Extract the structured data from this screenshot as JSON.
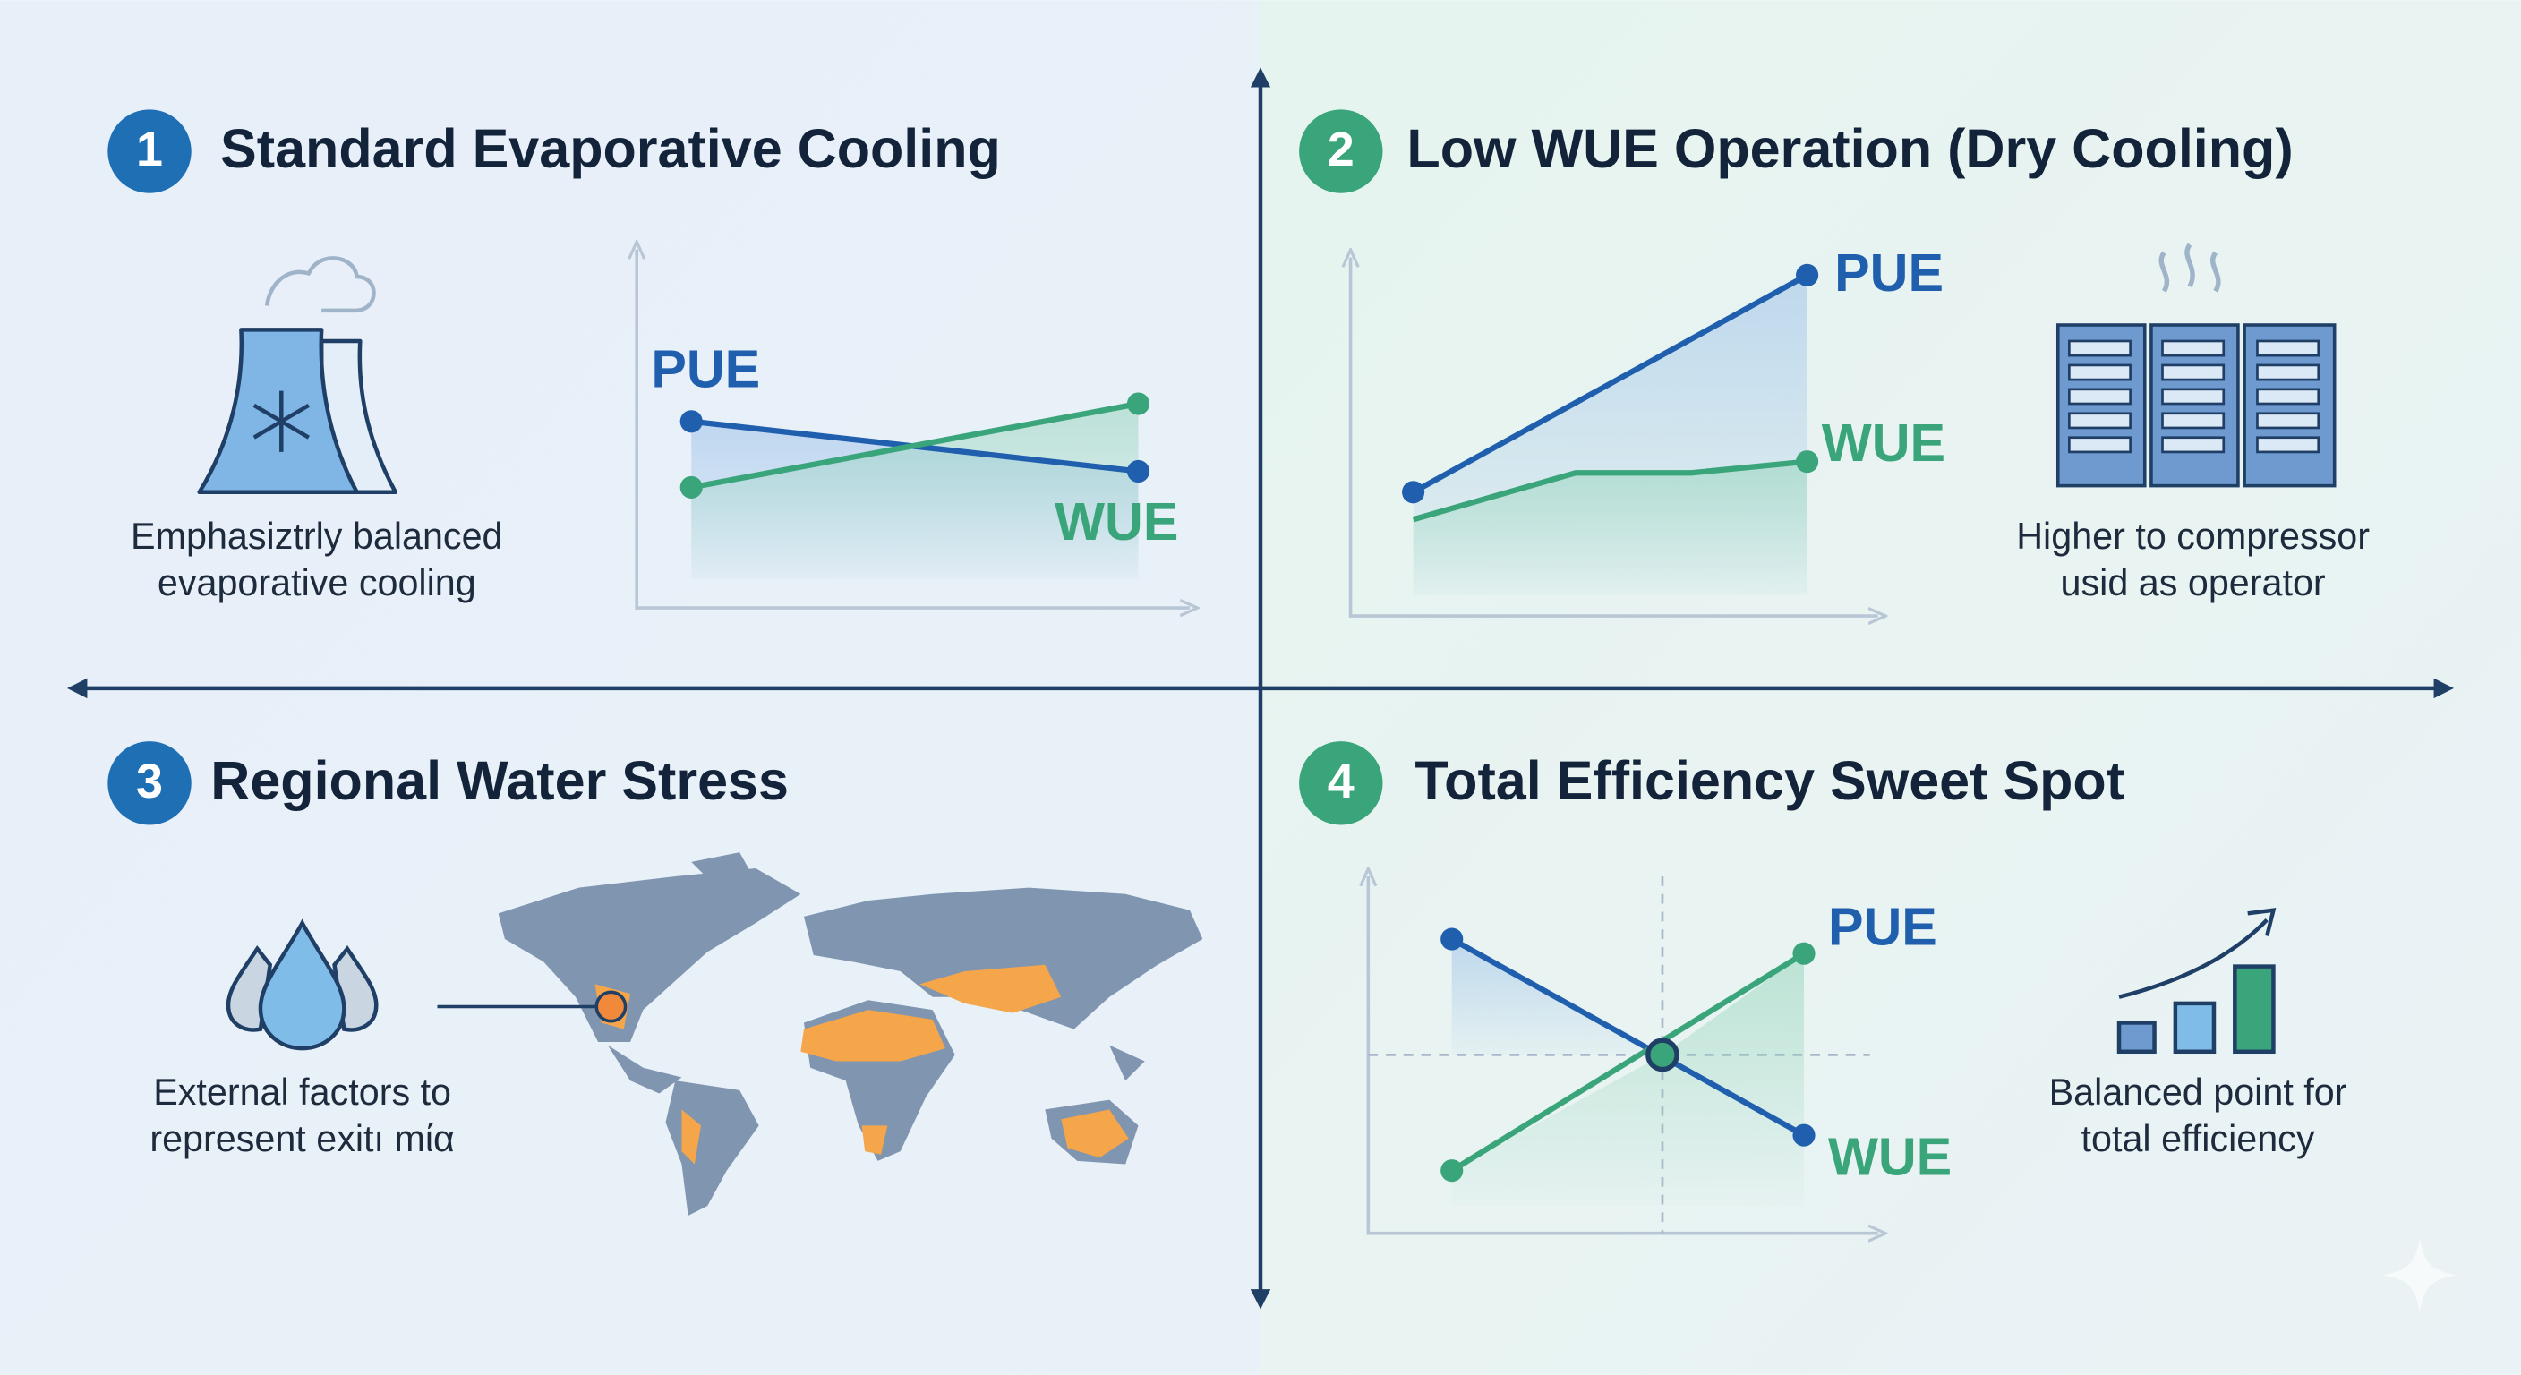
{
  "panels": [
    {
      "number": "1",
      "title": "Standard Evaporative Cooling",
      "description": [
        "Emphasiztrly balanced",
        "evaporative cooling"
      ],
      "chart_labels": {
        "pue": "PUE",
        "wue": "WUE"
      }
    },
    {
      "number": "2",
      "title": "Low WUE Operation (Dry Cooling)",
      "description": [
        "Higher to compressor",
        "usid as operator"
      ],
      "chart_labels": {
        "pue": "PUE",
        "wue": "WUE"
      }
    },
    {
      "number": "3",
      "title": "Regional Water Stress",
      "description": [
        "External factors to",
        "represent exitı mία"
      ]
    },
    {
      "number": "4",
      "title": "Total Efficiency Sweet Spot",
      "description": [
        "Balanced point for",
        "total efficiency"
      ],
      "chart_labels": {
        "pue": "PUE",
        "wue": "WUE"
      }
    }
  ]
}
